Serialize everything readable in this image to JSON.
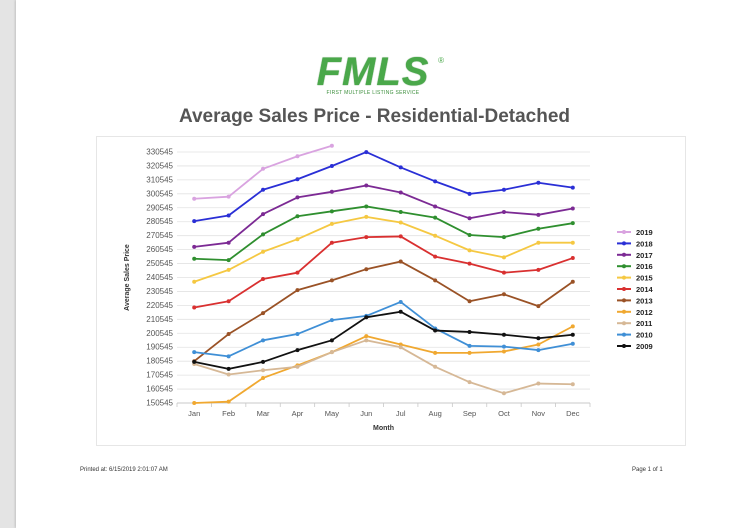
{
  "header": {
    "logo_text": "FMLS",
    "logo_reg": "®",
    "logo_subtitle": "FIRST MULTIPLE LISTING SERVICE",
    "report_title": "Average Sales Price - Residential-Detached"
  },
  "footer": {
    "printed_label": "Printed at:",
    "printed_value": "6/15/2019 2:01:07 AM",
    "page_label": "Page 1 of 1"
  },
  "chart_data": {
    "type": "line",
    "title": "",
    "xlabel": "Month",
    "ylabel": "Average Sales Price",
    "x": [
      "Jan",
      "Feb",
      "Mar",
      "Apr",
      "May",
      "Jun",
      "Jul",
      "Aug",
      "Sep",
      "Oct",
      "Nov",
      "Dec"
    ],
    "yticks": [
      150545,
      160545,
      170545,
      180545,
      190545,
      200545,
      210545,
      220545,
      230545,
      240545,
      250545,
      260545,
      270545,
      280545,
      290545,
      300545,
      310545,
      320545,
      330545
    ],
    "ylim": [
      150545,
      330545
    ],
    "grid": true,
    "legend_position": "right",
    "series": [
      {
        "name": "2019",
        "color": "#d9a3e0",
        "values": [
          297000,
          298500,
          318500,
          327500,
          335000,
          null,
          null,
          null,
          null,
          null,
          null,
          null
        ]
      },
      {
        "name": "2018",
        "color": "#2a2fd6",
        "values": [
          281000,
          285000,
          303500,
          311000,
          320500,
          330500,
          319500,
          309500,
          300500,
          303500,
          308500,
          305000
        ]
      },
      {
        "name": "2017",
        "color": "#7c2a94",
        "values": [
          262500,
          265500,
          286000,
          298000,
          302000,
          306500,
          301500,
          291500,
          283000,
          287500,
          285500,
          290000
        ]
      },
      {
        "name": "2016",
        "color": "#2f8f2f",
        "values": [
          254000,
          253000,
          271500,
          284500,
          288000,
          291500,
          287500,
          283500,
          271000,
          269500,
          275500,
          279500
        ]
      },
      {
        "name": "2015",
        "color": "#f5c842",
        "values": [
          237500,
          246000,
          259000,
          268000,
          279000,
          284000,
          280000,
          270500,
          260000,
          255000,
          265500,
          265500
        ]
      },
      {
        "name": "2014",
        "color": "#d93030",
        "values": [
          219000,
          223500,
          239500,
          244000,
          265500,
          269500,
          270000,
          255500,
          250500,
          244000,
          246000,
          254500
        ]
      },
      {
        "name": "2013",
        "color": "#9a5226",
        "values": [
          180500,
          200000,
          215000,
          231500,
          238500,
          246500,
          252000,
          238500,
          223500,
          228500,
          220000,
          237500
        ]
      },
      {
        "name": "2012",
        "color": "#f0a830",
        "values": [
          150545,
          151500,
          168500,
          177500,
          187000,
          198500,
          192500,
          186500,
          186500,
          187500,
          192500,
          205500
        ]
      },
      {
        "name": "2011",
        "color": "#d6b896",
        "values": [
          178500,
          171000,
          174000,
          176500,
          187000,
          195500,
          190500,
          176500,
          165500,
          157500,
          164500,
          164000
        ]
      },
      {
        "name": "2010",
        "color": "#3f8fd6",
        "values": [
          187000,
          184000,
          195500,
          200000,
          210000,
          213000,
          223000,
          204000,
          191500,
          191000,
          188500,
          193000
        ]
      },
      {
        "name": "2009",
        "color": "#111111",
        "values": [
          180000,
          175000,
          180000,
          188500,
          195500,
          212000,
          216000,
          202500,
          201500,
          199500,
          197000,
          199500
        ]
      }
    ]
  }
}
